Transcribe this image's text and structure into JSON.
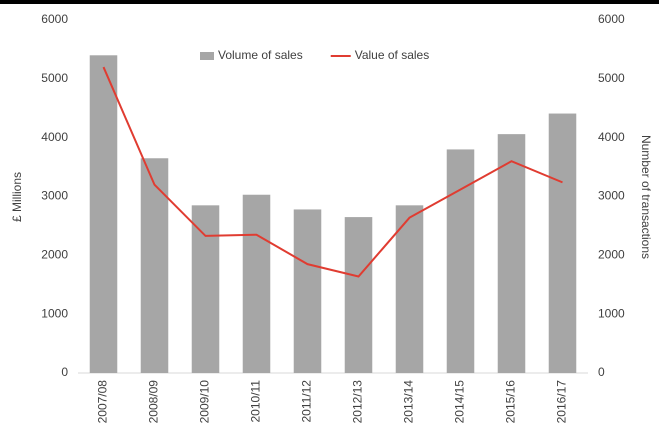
{
  "chart_data": {
    "type": "bar_line",
    "categories": [
      "2007/08",
      "2008/09",
      "2009/10",
      "2010/11",
      "2011/12",
      "2012/13",
      "2013/14",
      "2014/15",
      "2015/16",
      "2016/17"
    ],
    "series": [
      {
        "name": "Volume of sales",
        "type": "bar",
        "axis": "y2",
        "color": "#a6a6a6",
        "values": [
          5400,
          3650,
          2850,
          3030,
          2780,
          2650,
          2850,
          3800,
          4060,
          4410
        ]
      },
      {
        "name": "Value of sales",
        "type": "line",
        "axis": "y",
        "color": "#e03c31",
        "values": [
          5200,
          3200,
          2330,
          2350,
          1850,
          1640,
          2640,
          3120,
          3600,
          3240
        ]
      }
    ],
    "ylabel": "£ Millions",
    "y2label": "Number  of transactions",
    "ylim": [
      0,
      6000
    ],
    "yticks": [
      0,
      1000,
      2000,
      3000,
      4000,
      5000,
      6000
    ],
    "y2lim": [
      0,
      6000
    ],
    "y2ticks": [
      0,
      1000,
      2000,
      3000,
      4000,
      5000,
      6000
    ],
    "legend": "top"
  }
}
